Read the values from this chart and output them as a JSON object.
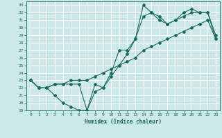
{
  "xlabel": "Humidex (Indice chaleur)",
  "bg_color": "#cce8e8",
  "grid_color": "#ffffff",
  "line_color": "#1a6b5a",
  "xlim": [
    -0.5,
    23.5
  ],
  "ylim": [
    19,
    33.5
  ],
  "xticks": [
    0,
    1,
    2,
    3,
    4,
    5,
    6,
    7,
    8,
    9,
    10,
    11,
    12,
    13,
    14,
    15,
    16,
    17,
    18,
    19,
    20,
    21,
    22,
    23
  ],
  "yticks": [
    19,
    20,
    21,
    22,
    23,
    24,
    25,
    26,
    27,
    28,
    29,
    30,
    31,
    32,
    33
  ],
  "line1_x": [
    0,
    1,
    2,
    3,
    4,
    5,
    6,
    7,
    8,
    9,
    10,
    11,
    12,
    13,
    14,
    15,
    16,
    17,
    18,
    19,
    20,
    21,
    22,
    23
  ],
  "line1_y": [
    23.0,
    22.0,
    22.0,
    22.5,
    22.5,
    22.5,
    22.5,
    19.0,
    21.5,
    22.0,
    24.0,
    27.0,
    27.0,
    28.5,
    33.0,
    32.0,
    31.5,
    30.5,
    31.0,
    32.0,
    32.5,
    32.0,
    32.0,
    29.0
  ],
  "line2_x": [
    0,
    1,
    2,
    3,
    4,
    5,
    6,
    7,
    8,
    9,
    10,
    11,
    12,
    13,
    14,
    15,
    16,
    17,
    18,
    19,
    20,
    21,
    22,
    23
  ],
  "line2_y": [
    23.0,
    22.0,
    22.0,
    21.0,
    20.0,
    19.5,
    19.0,
    19.0,
    22.5,
    22.0,
    23.5,
    25.0,
    26.5,
    28.5,
    31.5,
    32.0,
    31.0,
    30.5,
    31.0,
    31.5,
    32.0,
    32.0,
    32.0,
    28.5
  ],
  "line3_x": [
    0,
    1,
    2,
    3,
    4,
    5,
    6,
    7,
    8,
    9,
    10,
    11,
    12,
    13,
    14,
    15,
    16,
    17,
    18,
    19,
    20,
    21,
    22,
    23
  ],
  "line3_y": [
    23.0,
    22.0,
    22.0,
    22.5,
    22.5,
    23.0,
    23.0,
    23.0,
    23.5,
    24.0,
    24.5,
    25.0,
    25.5,
    26.0,
    27.0,
    27.5,
    28.0,
    28.5,
    29.0,
    29.5,
    30.0,
    30.5,
    31.0,
    28.5
  ]
}
